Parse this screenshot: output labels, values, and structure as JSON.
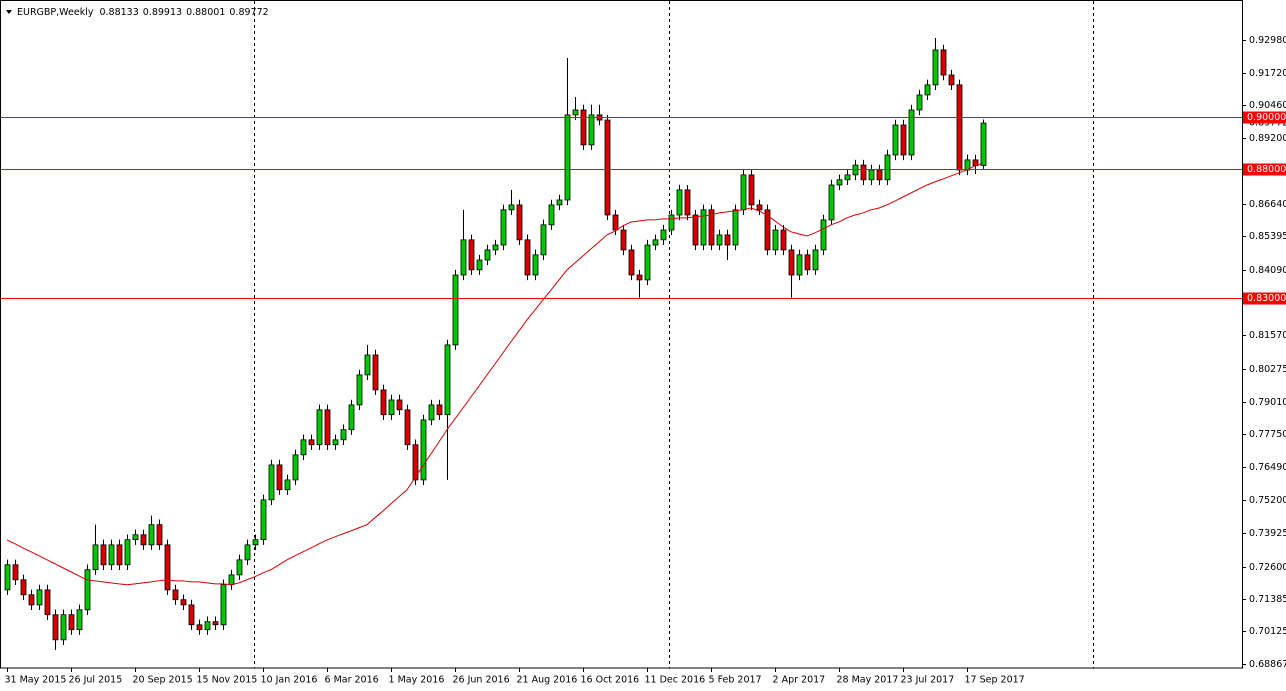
{
  "chart_data": {
    "type": "candlestick",
    "title": "EURGBP,Weekly",
    "categories": [
      "31 May 2015",
      null,
      null,
      null,
      null,
      null,
      null,
      null,
      "26 Jul 2015",
      null,
      null,
      null,
      null,
      null,
      null,
      null,
      "20 Sep 2015",
      null,
      null,
      null,
      null,
      null,
      null,
      null,
      "15 Nov 2015",
      null,
      null,
      null,
      null,
      null,
      null,
      null,
      "10 Jan 2016",
      null,
      null,
      null,
      null,
      null,
      null,
      null,
      "6 Mar 2016",
      null,
      null,
      null,
      null,
      null,
      null,
      null,
      "1 May 2016",
      null,
      null,
      null,
      null,
      null,
      null,
      null,
      "26 Jun 2016",
      null,
      null,
      null,
      null,
      null,
      null,
      null,
      "21 Aug 2016",
      null,
      null,
      null,
      null,
      null,
      null,
      null,
      "16 Oct 2016",
      null,
      null,
      null,
      null,
      null,
      null,
      null,
      "11 Dec 2016",
      null,
      null,
      null,
      null,
      null,
      null,
      null,
      "5 Feb 2017",
      null,
      null,
      null,
      null,
      null,
      null,
      null,
      "2 Apr 2017",
      null,
      null,
      null,
      null,
      null,
      null,
      null,
      "28 May 2017",
      null,
      null,
      null,
      null,
      null,
      null,
      null,
      "23 Jul 2017",
      null,
      null,
      null,
      null,
      null,
      null,
      null,
      "17 Sep 2017",
      null,
      null
    ],
    "candles": {
      "up_color": "#00c800",
      "down_color": "#d40000",
      "open": [
        0.7173,
        0.727,
        0.7212,
        0.7154,
        0.7115,
        0.7173,
        0.7077,
        0.698,
        0.7077,
        0.7019,
        0.7096,
        0.7251,
        0.7347,
        0.727,
        0.7347,
        0.727,
        0.7367,
        0.7386,
        0.7347,
        0.7425,
        0.7347,
        0.7173,
        0.7135,
        0.7115,
        0.7038,
        0.7019,
        0.705,
        0.7038,
        0.7193,
        0.7231,
        0.7289,
        0.7347,
        0.7367,
        0.7521,
        0.7656,
        0.756,
        0.7598,
        0.7695,
        0.7753,
        0.7734,
        0.7869,
        0.7734,
        0.7753,
        0.7792,
        0.7888,
        0.8004,
        0.8081,
        0.7946,
        0.785,
        0.7907,
        0.7869,
        0.7734,
        0.7598,
        0.783,
        0.7888,
        0.785,
        0.812,
        0.839,
        0.8526,
        0.841,
        0.8448,
        0.8487,
        0.8506,
        0.8642,
        0.8661,
        0.8526,
        0.839,
        0.8468,
        0.8584,
        0.8661,
        0.868,
        0.9009,
        0.9028,
        0.8893,
        0.9009,
        0.8989,
        0.8622,
        0.8564,
        0.8487,
        0.839,
        0.8371,
        0.8506,
        0.8526,
        0.8564,
        0.8622,
        0.8719,
        0.8622,
        0.8506,
        0.8642,
        0.8506,
        0.8545,
        0.8506,
        0.8642,
        0.8777,
        0.8661,
        0.8642,
        0.8487,
        0.8564,
        0.8487,
        0.839,
        0.8468,
        0.841,
        0.8487,
        0.8603,
        0.8738,
        0.8758,
        0.8777,
        0.8815,
        0.8758,
        0.8796,
        0.8758,
        0.8854,
        0.897,
        0.8854,
        0.9028,
        0.9086,
        0.9125,
        0.926,
        0.9163,
        0.9125,
        0.8796,
        0.8835,
        0.88133
      ],
      "high": [
        0.729,
        0.729,
        0.7232,
        0.7174,
        0.7193,
        0.7193,
        0.7097,
        0.7097,
        0.7097,
        0.7116,
        0.7271,
        0.7425,
        0.7367,
        0.7367,
        0.7367,
        0.7387,
        0.7406,
        0.7406,
        0.746,
        0.7445,
        0.7367,
        0.7193,
        0.7155,
        0.7135,
        0.7058,
        0.707,
        0.707,
        0.7213,
        0.7251,
        0.7309,
        0.7367,
        0.7387,
        0.7541,
        0.7676,
        0.7676,
        0.7618,
        0.7715,
        0.7773,
        0.7773,
        0.7889,
        0.7889,
        0.7773,
        0.7812,
        0.7908,
        0.8024,
        0.812,
        0.8101,
        0.7966,
        0.7927,
        0.7927,
        0.7889,
        0.7754,
        0.785,
        0.7908,
        0.7908,
        0.814,
        0.841,
        0.8642,
        0.8546,
        0.8468,
        0.8507,
        0.8526,
        0.8662,
        0.8719,
        0.8681,
        0.8546,
        0.8488,
        0.8604,
        0.8681,
        0.87,
        0.9229,
        0.9078,
        0.9048,
        0.9048,
        0.9048,
        0.9009,
        0.8642,
        0.8584,
        0.8507,
        0.841,
        0.8526,
        0.8546,
        0.8584,
        0.8642,
        0.8739,
        0.8738,
        0.8642,
        0.8662,
        0.8662,
        0.8565,
        0.8565,
        0.8662,
        0.8797,
        0.8797,
        0.8681,
        0.8662,
        0.8584,
        0.8584,
        0.8507,
        0.8488,
        0.8488,
        0.8507,
        0.8623,
        0.8758,
        0.8778,
        0.8797,
        0.8835,
        0.8835,
        0.8816,
        0.8816,
        0.8874,
        0.899,
        0.899,
        0.9048,
        0.9106,
        0.9145,
        0.9306,
        0.928,
        0.9183,
        0.9145,
        0.8855,
        0.8855,
        0.89913
      ],
      "low": [
        0.7153,
        0.7192,
        0.7134,
        0.7095,
        0.7095,
        0.7057,
        0.6941,
        0.696,
        0.6999,
        0.6999,
        0.7076,
        0.7231,
        0.725,
        0.725,
        0.725,
        0.725,
        0.7347,
        0.7327,
        0.7327,
        0.7327,
        0.7153,
        0.7115,
        0.7095,
        0.7018,
        0.6999,
        0.6999,
        0.7018,
        0.7018,
        0.7173,
        0.7211,
        0.7269,
        0.7327,
        0.7347,
        0.7501,
        0.754,
        0.754,
        0.7578,
        0.7675,
        0.7714,
        0.7714,
        0.7714,
        0.7714,
        0.7733,
        0.7772,
        0.7868,
        0.7984,
        0.7926,
        0.783,
        0.783,
        0.7849,
        0.7714,
        0.7578,
        0.7578,
        0.781,
        0.783,
        0.7598,
        0.81,
        0.837,
        0.839,
        0.839,
        0.8428,
        0.8467,
        0.8486,
        0.8622,
        0.8506,
        0.837,
        0.837,
        0.8448,
        0.8564,
        0.8641,
        0.866,
        0.8989,
        0.8873,
        0.8873,
        0.8969,
        0.8602,
        0.8544,
        0.8467,
        0.837,
        0.8302,
        0.8351,
        0.8486,
        0.8506,
        0.8544,
        0.8602,
        0.8602,
        0.8486,
        0.8486,
        0.8486,
        0.8486,
        0.8448,
        0.8486,
        0.8622,
        0.8641,
        0.8622,
        0.8467,
        0.8467,
        0.8467,
        0.8302,
        0.837,
        0.839,
        0.839,
        0.8467,
        0.8583,
        0.8718,
        0.8738,
        0.8757,
        0.8738,
        0.8738,
        0.8738,
        0.8738,
        0.8834,
        0.8834,
        0.8834,
        0.9008,
        0.9066,
        0.9105,
        0.9143,
        0.9105,
        0.8776,
        0.8776,
        0.878,
        0.88001
      ],
      "close": [
        0.727,
        0.7212,
        0.7154,
        0.7115,
        0.7173,
        0.7077,
        0.698,
        0.7077,
        0.7019,
        0.7096,
        0.7251,
        0.7347,
        0.727,
        0.7347,
        0.727,
        0.7367,
        0.7386,
        0.7347,
        0.7425,
        0.7347,
        0.7173,
        0.7135,
        0.7115,
        0.7038,
        0.7019,
        0.705,
        0.7038,
        0.7193,
        0.7231,
        0.7289,
        0.7347,
        0.7367,
        0.7521,
        0.7656,
        0.756,
        0.7598,
        0.7695,
        0.7753,
        0.7734,
        0.7869,
        0.7734,
        0.7753,
        0.7792,
        0.7888,
        0.8004,
        0.8081,
        0.7946,
        0.785,
        0.7907,
        0.7869,
        0.7734,
        0.7598,
        0.783,
        0.7888,
        0.785,
        0.812,
        0.839,
        0.8526,
        0.841,
        0.8448,
        0.8487,
        0.8506,
        0.8642,
        0.8661,
        0.8526,
        0.839,
        0.8468,
        0.8584,
        0.8661,
        0.868,
        0.9009,
        0.9028,
        0.8893,
        0.9009,
        0.8989,
        0.8622,
        0.8564,
        0.8487,
        0.839,
        0.8371,
        0.8506,
        0.8526,
        0.8564,
        0.8622,
        0.8719,
        0.8622,
        0.8506,
        0.8642,
        0.8506,
        0.8545,
        0.8506,
        0.8642,
        0.8777,
        0.8661,
        0.8642,
        0.8487,
        0.8564,
        0.8487,
        0.839,
        0.8468,
        0.841,
        0.8487,
        0.8603,
        0.8738,
        0.8758,
        0.8777,
        0.8815,
        0.8758,
        0.8796,
        0.8758,
        0.8854,
        0.897,
        0.8854,
        0.9028,
        0.9086,
        0.9125,
        0.926,
        0.9163,
        0.9125,
        0.8796,
        0.8835,
        0.8813,
        0.89772
      ]
    },
    "moving_average": {
      "color": "#d40000",
      "values": [
        0.7366,
        0.7351,
        0.7335,
        0.732,
        0.7305,
        0.7289,
        0.7274,
        0.7258,
        0.7243,
        0.7227,
        0.7212,
        0.7208,
        0.7204,
        0.72,
        0.7196,
        0.7193,
        0.7196,
        0.72,
        0.7204,
        0.7208,
        0.7212,
        0.7208,
        0.7208,
        0.7204,
        0.7204,
        0.72,
        0.7196,
        0.7196,
        0.7193,
        0.72,
        0.7212,
        0.7224,
        0.7239,
        0.7251,
        0.727,
        0.7289,
        0.7305,
        0.732,
        0.7335,
        0.7351,
        0.7366,
        0.7378,
        0.739,
        0.7401,
        0.7413,
        0.7425,
        0.7452,
        0.7478,
        0.7506,
        0.7533,
        0.756,
        0.7606,
        0.7652,
        0.7699,
        0.7745,
        0.7792,
        0.7834,
        0.7876,
        0.7919,
        0.7961,
        0.8004,
        0.8046,
        0.8089,
        0.8132,
        0.8174,
        0.8217,
        0.8255,
        0.8294,
        0.8332,
        0.8371,
        0.841,
        0.8437,
        0.8464,
        0.8491,
        0.8518,
        0.8545,
        0.856,
        0.858,
        0.8595,
        0.8599,
        0.8603,
        0.8603,
        0.8607,
        0.8607,
        0.8611,
        0.8611,
        0.8615,
        0.8618,
        0.8622,
        0.863,
        0.8634,
        0.8638,
        0.8642,
        0.8649,
        0.8638,
        0.8622,
        0.8599,
        0.8576,
        0.8557,
        0.8549,
        0.8541,
        0.8553,
        0.8568,
        0.8584,
        0.8595,
        0.8611,
        0.8622,
        0.863,
        0.8642,
        0.8649,
        0.8661,
        0.8676,
        0.8692,
        0.8707,
        0.8723,
        0.8738,
        0.875,
        0.8761,
        0.8773,
        0.8785,
        0.8796,
        0.8812,
        0.8823
      ]
    },
    "levels": [
      {
        "value": 0.9,
        "label": "0.90000"
      },
      {
        "value": 0.88,
        "label": "0.88000"
      },
      {
        "value": 0.83,
        "label": "0.83000"
      }
    ],
    "level_color": "#ff0000",
    "ylim": [
      0.6871,
      0.9453
    ],
    "yticks": [
      {
        "value": 0.9298,
        "label": "0.92980"
      },
      {
        "value": 0.9172,
        "label": "0.91720"
      },
      {
        "value": 0.9046,
        "label": "0.90460"
      },
      {
        "value": 0.892,
        "label": "0.89200"
      },
      {
        "value": 0.8664,
        "label": "0.86640"
      },
      0.85395,
      {
        "value": 0.8409,
        "label": "0.84090"
      },
      {
        "value": 0.8157,
        "label": "0.81570"
      },
      0.80275,
      {
        "value": 0.7901,
        "label": "0.79010"
      },
      {
        "value": 0.7775,
        "label": "0.77750"
      },
      {
        "value": 0.7649,
        "label": "0.76490"
      },
      {
        "value": 0.752,
        "label": "0.75200"
      },
      0.73925,
      {
        "value": 0.726,
        "label": "0.72600"
      },
      0.71385,
      {
        "value": 0.70125,
        "label": "0.70125"
      },
      0.68867
    ],
    "grid": false
  }
}
